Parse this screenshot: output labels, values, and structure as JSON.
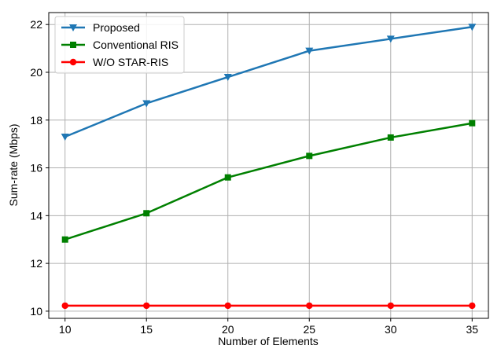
{
  "chart_data": {
    "type": "line",
    "xlabel": "Number of Elements",
    "ylabel": "Sum-rate (Mbps)",
    "x": [
      10,
      15,
      20,
      25,
      30,
      35
    ],
    "xlim": [
      9,
      36
    ],
    "ylim": [
      9.7,
      22.5
    ],
    "xticks": [
      "10",
      "15",
      "20",
      "25",
      "30",
      "35"
    ],
    "yticks": [
      "10",
      "12",
      "14",
      "16",
      "18",
      "20",
      "22"
    ],
    "grid": true,
    "legend_position": "top-left",
    "series": [
      {
        "name": "Proposed",
        "values": [
          17.3,
          18.7,
          19.8,
          20.9,
          21.4,
          21.9
        ],
        "color": "#1f77b4",
        "marker": "triangle-down"
      },
      {
        "name": "Conventional RIS",
        "values": [
          13.0,
          14.1,
          15.6,
          16.5,
          17.27,
          17.87
        ],
        "color": "#008000",
        "marker": "square"
      },
      {
        "name": "W/O STAR-RIS",
        "values": [
          10.23,
          10.23,
          10.23,
          10.23,
          10.23,
          10.23
        ],
        "color": "#ff0000",
        "marker": "circle"
      }
    ]
  }
}
